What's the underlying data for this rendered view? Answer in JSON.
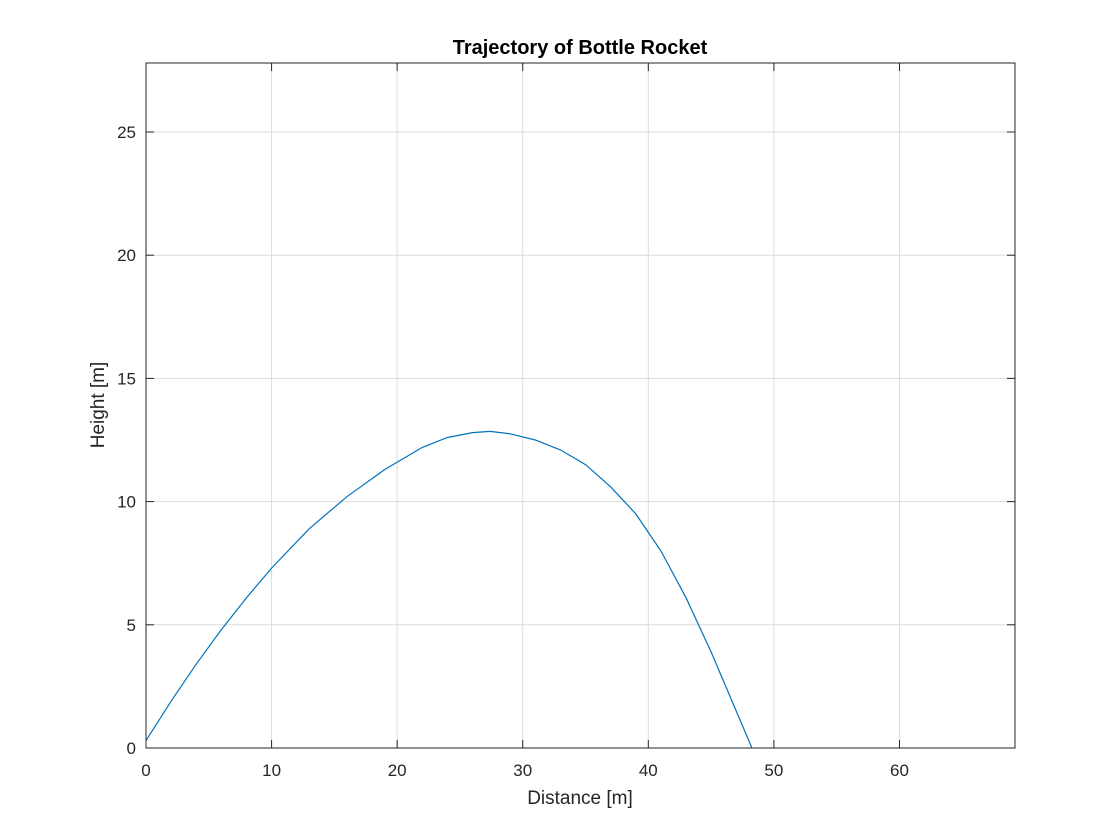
{
  "chart_data": {
    "type": "line",
    "title": "Trajectory of Bottle Rocket",
    "xlabel": "Distance [m]",
    "ylabel": "Height [m]",
    "xlim": [
      0,
      69.2
    ],
    "ylim": [
      0,
      27.8
    ],
    "xticks": [
      0,
      10,
      20,
      30,
      40,
      50,
      60
    ],
    "yticks": [
      0,
      5,
      10,
      15,
      20,
      25
    ],
    "grid": true,
    "legend": "none",
    "series": [
      {
        "color": "#0072BD",
        "x": [
          0,
          2,
          4,
          6,
          8,
          10,
          13,
          16,
          19,
          22,
          24,
          26,
          27.4,
          29,
          31,
          33,
          35,
          37,
          39,
          41,
          43,
          45,
          47,
          48.5,
          49.2
        ],
        "y": [
          0.3,
          1.9,
          3.4,
          4.8,
          6.1,
          7.3,
          8.9,
          10.2,
          11.3,
          12.2,
          12.6,
          12.8,
          12.85,
          12.75,
          12.5,
          12.1,
          11.5,
          10.6,
          9.5,
          8.0,
          6.1,
          3.9,
          1.5,
          -0.3,
          -0.4
        ]
      }
    ]
  }
}
